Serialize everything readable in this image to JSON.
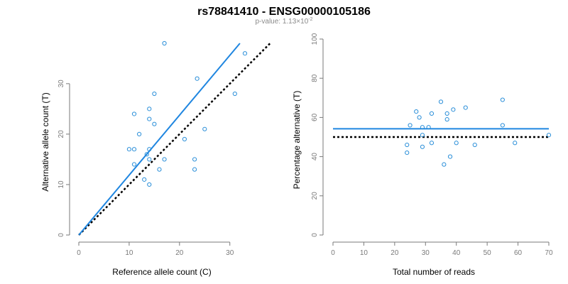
{
  "header": {
    "title": "rs78841410 - ENSG00000105186",
    "pvalue_prefix": "p-value: 1.13×10",
    "pvalue_exp": "-2"
  },
  "colors": {
    "points": "#2b8fd9",
    "fit_line": "#1f86e0",
    "reference_line": "#000000",
    "axis": "#7a7a7a"
  },
  "chart_data": [
    {
      "type": "scatter",
      "xlabel": "Reference allele count (C)",
      "ylabel": "Alternative allele count (T)",
      "xlim": [
        0,
        33
      ],
      "ylim": [
        0,
        38
      ],
      "xticks": [
        0,
        10,
        20,
        30
      ],
      "yticks": [
        0,
        10,
        20,
        30
      ],
      "grid": false,
      "points": [
        [
          17,
          38
        ],
        [
          33,
          36
        ],
        [
          23.5,
          31
        ],
        [
          15,
          28
        ],
        [
          31,
          28
        ],
        [
          11,
          24
        ],
        [
          14,
          25
        ],
        [
          14,
          23
        ],
        [
          15,
          22
        ],
        [
          25,
          21
        ],
        [
          12,
          20
        ],
        [
          21,
          19
        ],
        [
          10,
          17
        ],
        [
          11,
          17
        ],
        [
          14,
          17
        ],
        [
          13.5,
          16
        ],
        [
          14,
          15
        ],
        [
          17,
          15
        ],
        [
          23,
          15
        ],
        [
          11,
          14
        ],
        [
          16,
          13
        ],
        [
          23,
          13
        ],
        [
          13,
          11
        ],
        [
          14,
          10
        ]
      ],
      "fit_line": {
        "x": [
          0,
          32
        ],
        "y": [
          0,
          38
        ]
      },
      "reference_line": {
        "x": [
          0,
          38
        ],
        "y": [
          0,
          38
        ]
      }
    },
    {
      "type": "scatter",
      "xlabel": "Total number of reads",
      "ylabel": "Percentage alternative (T)",
      "xlim": [
        0,
        70
      ],
      "ylim": [
        0,
        100
      ],
      "xticks": [
        0,
        10,
        20,
        30,
        40,
        50,
        60,
        70
      ],
      "yticks": [
        0,
        20,
        40,
        60,
        80,
        100
      ],
      "grid": false,
      "points": [
        [
          55,
          69
        ],
        [
          35,
          68
        ],
        [
          27,
          63
        ],
        [
          32,
          62
        ],
        [
          43,
          65
        ],
        [
          37,
          62
        ],
        [
          39,
          64
        ],
        [
          37,
          59
        ],
        [
          28,
          60
        ],
        [
          29,
          55
        ],
        [
          31,
          55
        ],
        [
          55,
          56
        ],
        [
          25,
          56
        ],
        [
          70,
          51
        ],
        [
          29,
          51
        ],
        [
          24,
          46
        ],
        [
          29,
          45
        ],
        [
          32,
          47
        ],
        [
          40,
          47
        ],
        [
          46,
          46
        ],
        [
          59,
          47
        ],
        [
          24,
          42
        ],
        [
          38,
          40
        ],
        [
          36,
          36
        ]
      ],
      "fit_line": {
        "x": [
          0,
          70
        ],
        "y": [
          54.2,
          54.2
        ]
      },
      "reference_line": {
        "x": [
          0,
          70
        ],
        "y": [
          50,
          50
        ]
      }
    }
  ]
}
